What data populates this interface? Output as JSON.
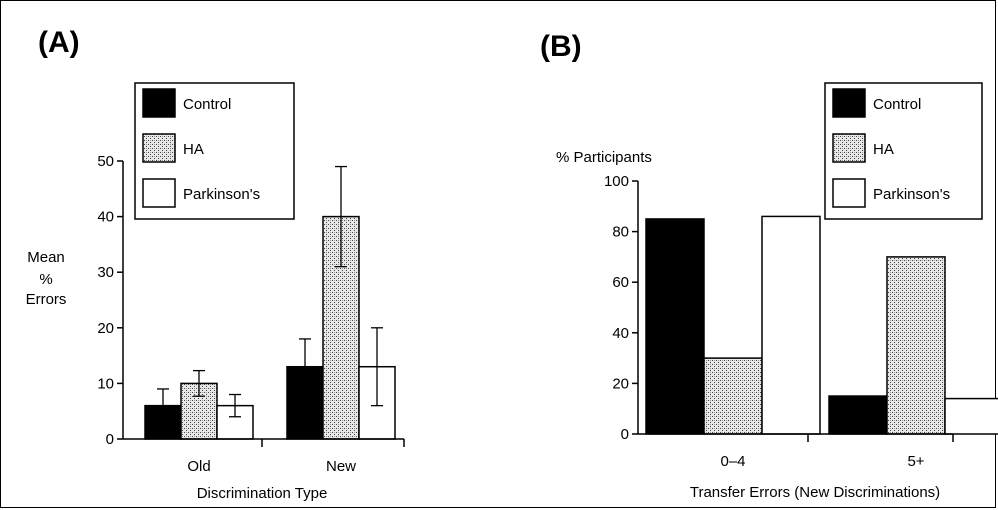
{
  "colors": {
    "control": "#000000",
    "ha_pattern": "stippled-gray",
    "parkinsons": "#ffffff"
  },
  "chart_data": [
    {
      "panel": "(A)",
      "type": "bar",
      "categories": [
        "Old",
        "New"
      ],
      "xlabel": "Discrimination Type",
      "ylabel_lines": [
        "Mean",
        "%",
        "Errors"
      ],
      "ylim": [
        0,
        50
      ],
      "yticks": [
        "0",
        "10",
        "20",
        "30",
        "40",
        "50"
      ],
      "legend_position": "top-left",
      "series": [
        {
          "name": "Control",
          "values": [
            6,
            13
          ],
          "error": [
            3,
            5
          ]
        },
        {
          "name": "HA",
          "values": [
            10,
            40
          ],
          "error": [
            2.3,
            9
          ]
        },
        {
          "name": "Parkinson's",
          "values": [
            6,
            13
          ],
          "error": [
            2,
            7
          ]
        }
      ]
    },
    {
      "panel": "(B)",
      "type": "bar",
      "categories": [
        "0–4",
        "5+"
      ],
      "xlabel": "Transfer Errors (New Discriminations)",
      "ylabel": "% Participants",
      "ylim": [
        0,
        100
      ],
      "yticks": [
        "0",
        "20",
        "40",
        "60",
        "80",
        "100"
      ],
      "legend_position": "top-right",
      "series": [
        {
          "name": "Control",
          "values": [
            85,
            15
          ]
        },
        {
          "name": "HA",
          "values": [
            30,
            70
          ]
        },
        {
          "name": "Parkinson's",
          "values": [
            86,
            14
          ]
        }
      ]
    }
  ]
}
